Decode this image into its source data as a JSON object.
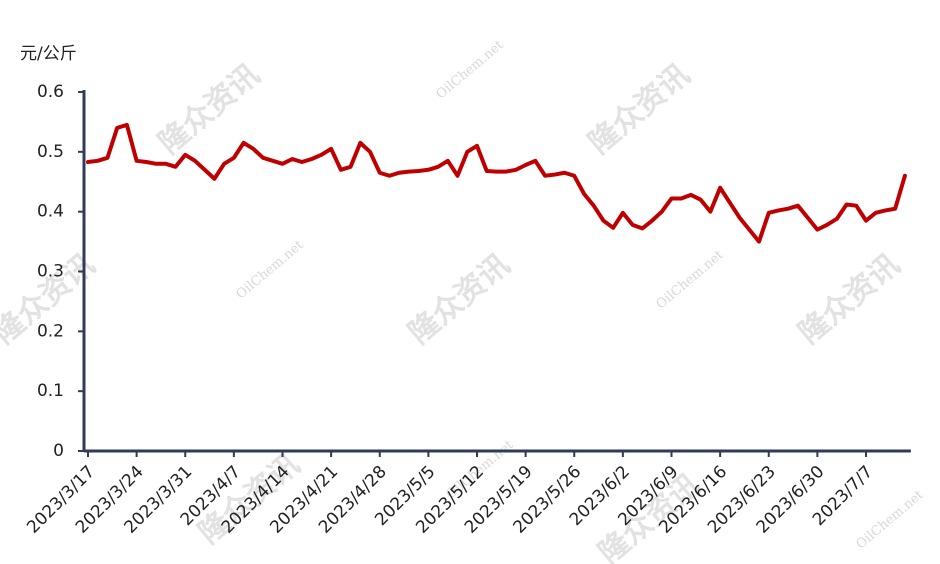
{
  "chart_data": {
    "type": "line",
    "y_unit": "元/公斤",
    "watermark": [
      "隆众资讯",
      "OilChem.net"
    ],
    "categories": [
      "2023/3/17",
      null,
      null,
      null,
      null,
      "2023/3/24",
      null,
      null,
      null,
      null,
      "2023/3/31",
      null,
      null,
      null,
      null,
      "2023/4/7",
      null,
      null,
      null,
      null,
      "2023/4/14",
      null,
      null,
      null,
      null,
      "2023/4/21",
      null,
      null,
      null,
      null,
      "2023/4/28",
      null,
      null,
      null,
      null,
      "2023/5/5",
      null,
      null,
      null,
      null,
      "2023/5/12",
      null,
      null,
      null,
      null,
      "2023/5/19",
      null,
      null,
      null,
      null,
      "2023/5/26",
      null,
      null,
      null,
      null,
      "2023/6/2",
      null,
      null,
      null,
      null,
      "2023/6/9",
      null,
      null,
      null,
      null,
      "2023/6/16",
      null,
      null,
      null,
      null,
      "2023/6/23",
      null,
      null,
      null,
      null,
      "2023/6/30",
      null,
      null,
      null,
      null,
      "2023/7/7",
      null,
      null,
      null,
      null
    ],
    "values": [
      0.483,
      0.485,
      0.49,
      0.54,
      0.545,
      0.485,
      0.483,
      0.48,
      0.48,
      0.475,
      0.495,
      0.485,
      0.47,
      0.455,
      0.48,
      0.49,
      0.515,
      0.505,
      0.49,
      0.485,
      0.48,
      0.488,
      0.483,
      0.488,
      0.495,
      0.505,
      0.47,
      0.475,
      0.515,
      0.5,
      0.465,
      0.46,
      0.465,
      0.467,
      0.468,
      0.47,
      0.475,
      0.485,
      0.46,
      0.5,
      0.51,
      0.468,
      0.467,
      0.467,
      0.47,
      0.478,
      0.485,
      0.46,
      0.462,
      0.465,
      0.46,
      0.43,
      0.41,
      0.385,
      0.373,
      0.398,
      0.378,
      0.372,
      0.385,
      0.4,
      0.422,
      0.422,
      0.428,
      0.42,
      0.4,
      0.44,
      0.415,
      0.39,
      0.37,
      0.35,
      0.398,
      0.402,
      0.405,
      0.41,
      0.39,
      0.37,
      0.378,
      0.388,
      0.412,
      0.41,
      0.385,
      0.398,
      0.402,
      0.405,
      0.46
    ],
    "color": "#c00000",
    "ylim": [
      0,
      0.6
    ],
    "yticks": [
      0,
      0.1,
      0.2,
      0.3,
      0.4,
      0.5,
      0.6
    ]
  }
}
